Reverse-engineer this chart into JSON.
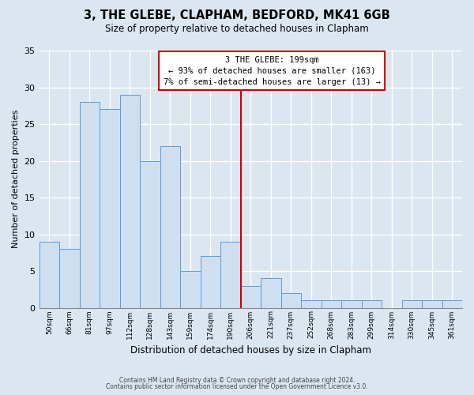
{
  "title": "3, THE GLEBE, CLAPHAM, BEDFORD, MK41 6GB",
  "subtitle": "Size of property relative to detached houses in Clapham",
  "xlabel": "Distribution of detached houses by size in Clapham",
  "ylabel": "Number of detached properties",
  "bar_heights": [
    9,
    8,
    28,
    27,
    29,
    20,
    22,
    5,
    7,
    9,
    3,
    4,
    2,
    1,
    1,
    1,
    1,
    0,
    1,
    1,
    1
  ],
  "bar_labels": [
    "50sqm",
    "66sqm",
    "81sqm",
    "97sqm",
    "112sqm",
    "128sqm",
    "143sqm",
    "159sqm",
    "174sqm",
    "190sqm",
    "206sqm",
    "221sqm",
    "237sqm",
    "252sqm",
    "268sqm",
    "283sqm",
    "299sqm",
    "314sqm",
    "330sqm",
    "345sqm",
    "361sqm"
  ],
  "bar_color": "#cfdff0",
  "bar_edge_color": "#5b9bd5",
  "bar_width": 1.0,
  "vline_x": 10.0,
  "vline_color": "#cc0000",
  "annotation_title": "3 THE GLEBE: 199sqm",
  "annotation_line1": "← 93% of detached houses are smaller (163)",
  "annotation_line2": "7% of semi-detached houses are larger (13) →",
  "annotation_box_edge": "#cc0000",
  "ylim": [
    0,
    35
  ],
  "yticks": [
    0,
    5,
    10,
    15,
    20,
    25,
    30,
    35
  ],
  "background_color": "#dce6f1",
  "plot_bg_color": "#dce6f1",
  "grid_color": "#ffffff",
  "footnote1": "Contains HM Land Registry data © Crown copyright and database right 2024.",
  "footnote2": "Contains public sector information licensed under the Open Government Licence v3.0."
}
